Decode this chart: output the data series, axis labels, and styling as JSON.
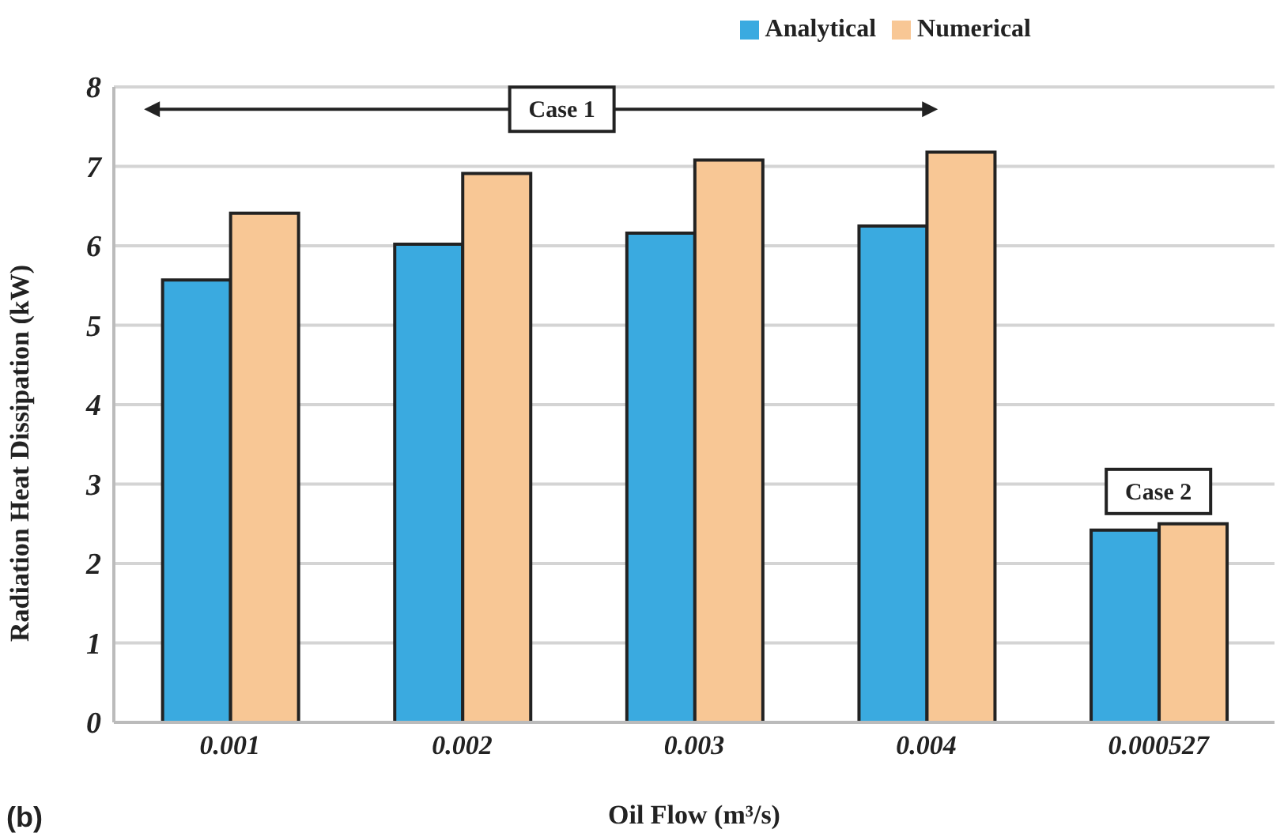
{
  "chart_data": {
    "type": "bar",
    "xlabel": "Oil Flow (m³/s)",
    "ylabel": "Radiation Heat Dissipation (kW)",
    "categories": [
      "0.001",
      "0.002",
      "0.003",
      "0.004",
      "0.000527"
    ],
    "series": [
      {
        "name": "Analytical",
        "color": "#3aaae0",
        "values": [
          5.57,
          6.02,
          6.16,
          6.25,
          2.42
        ]
      },
      {
        "name": "Numerical",
        "color": "#f8c795",
        "values": [
          6.41,
          6.91,
          7.08,
          7.18,
          2.5
        ]
      }
    ],
    "ylim": [
      0,
      8
    ],
    "yticks": [
      0,
      1,
      2,
      3,
      4,
      5,
      6,
      7,
      8
    ],
    "grid": "y",
    "legend": "top right",
    "annotations": [
      "Case 1",
      "Case 2",
      "(b)"
    ]
  }
}
